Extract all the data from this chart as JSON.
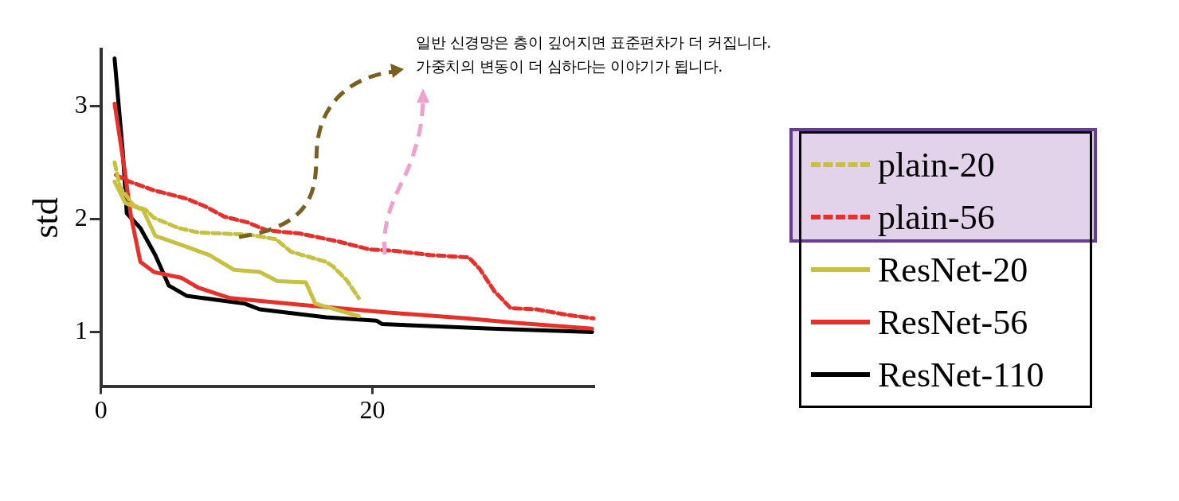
{
  "chart_data": {
    "type": "line",
    "ylabel": "std",
    "xlim": [
      0,
      36.3
    ],
    "ylim": [
      0.52,
      3.5
    ],
    "xticks": [
      0,
      20
    ],
    "yticks": [
      1,
      2,
      3
    ],
    "legend": "right",
    "grid": false,
    "annotations": [
      "일반 신경망은 층이 깊어지면 표준편차가 더 커집니다.",
      "가중치의 변동이 더 심하다는 이야기가 됩니다."
    ],
    "series": [
      {
        "name": "plain-20",
        "color": "#c8c040",
        "line_style": "dashed",
        "x": [
          1,
          1.4,
          2.4,
          3.3,
          3.9,
          5.7,
          7.2,
          11,
          12.9,
          14,
          16.6,
          17.1,
          18.1,
          19
        ],
        "values": [
          2.5,
          2.28,
          2.12,
          2.08,
          2.01,
          1.92,
          1.88,
          1.86,
          1.82,
          1.71,
          1.62,
          1.58,
          1.46,
          1.3
        ]
      },
      {
        "name": "plain-56",
        "color": "#e8302a",
        "line_style": "dashed",
        "x": [
          1.1,
          2.1,
          4,
          6.3,
          7.7,
          9.1,
          10.8,
          12.2,
          14.7,
          17.5,
          19.8,
          21.5,
          24.3,
          27.1,
          27.9,
          29,
          30.2,
          32.1,
          34.4,
          36.3
        ],
        "values": [
          2.39,
          2.33,
          2.25,
          2.18,
          2.11,
          2.02,
          1.97,
          1.9,
          1.87,
          1.8,
          1.73,
          1.72,
          1.68,
          1.66,
          1.56,
          1.36,
          1.21,
          1.2,
          1.15,
          1.12
        ]
      },
      {
        "name": "ResNet-20",
        "color": "#c8c040",
        "line_style": "solid",
        "x": [
          1,
          1.8,
          3.1,
          4,
          5.7,
          8,
          9.8,
          11.7,
          13,
          15.1,
          15.8,
          19
        ],
        "values": [
          2.33,
          2.14,
          2.08,
          1.85,
          1.78,
          1.68,
          1.55,
          1.53,
          1.45,
          1.44,
          1.25,
          1.14
        ]
      },
      {
        "name": "ResNet-56",
        "color": "#e8302a",
        "line_style": "solid",
        "x": [
          1,
          1.7,
          2.2,
          2.9,
          3.9,
          5.9,
          7.2,
          9.5,
          14.7,
          20.3,
          26.9,
          30.6,
          36.2
        ],
        "values": [
          3.02,
          2.47,
          2.03,
          1.62,
          1.53,
          1.48,
          1.39,
          1.3,
          1.24,
          1.18,
          1.12,
          1.08,
          1.03
        ]
      },
      {
        "name": "ResNet-110",
        "color": "#000000",
        "line_style": "solid",
        "x": [
          1,
          1.6,
          1.9,
          2.9,
          4,
          5,
          6.3,
          10.6,
          11.7,
          16.6,
          20.3,
          20.7,
          28.8,
          36.2
        ],
        "values": [
          3.42,
          2.6,
          2.05,
          1.92,
          1.68,
          1.41,
          1.32,
          1.25,
          1.2,
          1.13,
          1.1,
          1.07,
          1.03,
          1.0
        ]
      }
    ]
  }
}
